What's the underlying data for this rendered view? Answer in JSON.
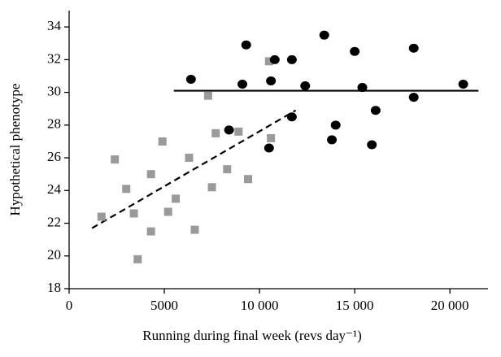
{
  "chart_data": {
    "type": "scatter",
    "xlabel": "Running during final week (revs day⁻¹)",
    "ylabel": "Hypothetical phenotype",
    "xlim": [
      0,
      22000
    ],
    "ylim": [
      18,
      35
    ],
    "xticks": [
      0,
      5000,
      {
        "value": 10000,
        "label": "10 000"
      },
      {
        "value": 15000,
        "label": "15 000"
      },
      {
        "value": 20000,
        "label": "20 000"
      }
    ],
    "yticks": [
      18,
      20,
      22,
      24,
      26,
      28,
      30,
      32,
      34
    ],
    "grid": false,
    "series": [
      {
        "marker": "square",
        "color": "#9a9a9a",
        "x": [
          1700,
          2400,
          3000,
          3400,
          3600,
          4300,
          4300,
          4900,
          5200,
          5600,
          6300,
          6600,
          7300,
          7500,
          7700,
          8300,
          8900,
          9400,
          10500,
          10600
        ],
        "values": [
          22.4,
          25.9,
          24.1,
          22.6,
          19.8,
          21.5,
          25.0,
          27.0,
          22.7,
          23.5,
          26.0,
          21.6,
          29.8,
          24.2,
          27.5,
          25.3,
          27.6,
          24.7,
          31.9,
          27.2
        ]
      },
      {
        "marker": "circle",
        "color": "#000000",
        "x": [
          6400,
          8400,
          9100,
          9300,
          10500,
          10600,
          10800,
          11700,
          11700,
          12400,
          13400,
          13800,
          14000,
          15000,
          15400,
          15900,
          16100,
          18100,
          18100,
          20700
        ],
        "values": [
          30.8,
          27.7,
          30.5,
          32.9,
          26.6,
          30.7,
          32.0,
          32.0,
          28.5,
          30.4,
          33.5,
          27.1,
          28.0,
          32.5,
          30.3,
          26.8,
          28.9,
          32.7,
          29.7,
          30.5
        ]
      }
    ],
    "lines": [
      {
        "style": "solid",
        "color": "#000000",
        "x": [
          5500,
          21500
        ],
        "values": [
          30.1,
          30.1
        ]
      },
      {
        "style": "dashed",
        "color": "#000000",
        "x": [
          1200,
          11900
        ],
        "values": [
          21.7,
          28.9
        ]
      }
    ]
  }
}
